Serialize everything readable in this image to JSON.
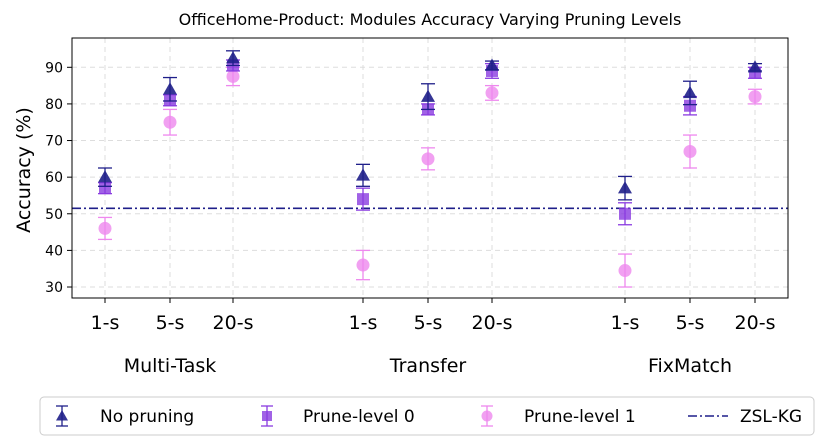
{
  "chart_data": {
    "type": "scatter",
    "title": "OfficeHome-Product: Modules Accuracy Varying Pruning Levels",
    "ylabel": "Accuracy (%)",
    "xlabel": "",
    "ylim": [
      27,
      98
    ],
    "yticks": [
      30,
      40,
      50,
      60,
      70,
      80,
      90
    ],
    "grid": true,
    "legend_position": "bottom",
    "groups": [
      {
        "name": "Multi-Task",
        "ticks": [
          "1-s",
          "5-s",
          "20-s"
        ]
      },
      {
        "name": "Transfer",
        "ticks": [
          "1-s",
          "5-s",
          "20-s"
        ]
      },
      {
        "name": "FixMatch",
        "ticks": [
          "1-s",
          "5-s",
          "20-s"
        ]
      }
    ],
    "series": [
      {
        "name": "No pruning",
        "marker": "triangle",
        "color": "#1f1f8a",
        "values": [
          60,
          84,
          92.5,
          60.5,
          82,
          90.5,
          57,
          83,
          90
        ],
        "errors": [
          2.5,
          3.2,
          2.0,
          3.0,
          3.5,
          1.2,
          3.2,
          3.2,
          1.0
        ]
      },
      {
        "name": "Prune-level 0",
        "marker": "square",
        "color": "#8a3be0",
        "values": [
          57,
          81,
          90.5,
          54,
          78.5,
          89,
          50,
          79.5,
          88.5
        ],
        "errors": [
          1.5,
          1.5,
          1.5,
          3.0,
          1.5,
          2.0,
          3.0,
          2.5,
          1.5
        ]
      },
      {
        "name": "Prune-level 1",
        "marker": "circle",
        "color": "#ee88ee",
        "values": [
          46,
          75,
          87.5,
          36,
          65,
          83,
          34.5,
          67,
          82
        ],
        "errors": [
          3.0,
          3.5,
          2.5,
          4.0,
          3.0,
          2.0,
          4.5,
          4.5,
          2.0
        ]
      }
    ],
    "reference_line": {
      "name": "ZSL-KG",
      "value": 51.5,
      "color": "#1f1f8a",
      "style": "dash-dot"
    }
  }
}
